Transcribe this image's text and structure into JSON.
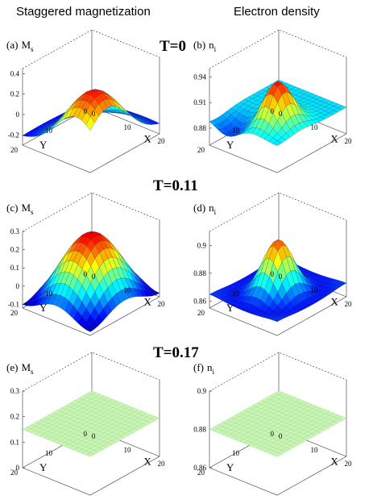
{
  "column_titles": {
    "left": "Staggered magnetization",
    "right": "Electron density"
  },
  "temperatures": [
    "T=0",
    "T=0.11",
    "T=0.17"
  ],
  "chart_data": [
    {
      "type": "surface",
      "panel": "(a)",
      "quantity": "M",
      "subscript": "s",
      "zticks": [
        "0.4",
        "0.2",
        "0",
        "-0.2"
      ],
      "zlim": [
        -0.3,
        0.45
      ],
      "xticks": [
        "0",
        "10",
        "20"
      ],
      "yticks": [
        "20",
        "10",
        "0"
      ],
      "xlabel": "X",
      "ylabel": "Y",
      "xlim": [
        0,
        20
      ],
      "ylim": [
        0,
        20
      ],
      "peak_value": 0.35,
      "min_value": -0.22,
      "colormap": "jet"
    },
    {
      "type": "surface",
      "panel": "(b)",
      "quantity": "n",
      "subscript": "i",
      "zticks": [
        "0.94",
        "0.91",
        "0.88"
      ],
      "zlim": [
        0.86,
        0.95
      ],
      "xticks": [
        "0",
        "10",
        "20"
      ],
      "yticks": [
        "20",
        "10",
        "0"
      ],
      "xlabel": "X",
      "ylabel": "Y",
      "xlim": [
        0,
        20
      ],
      "ylim": [
        0,
        20
      ],
      "peak_value": 0.94,
      "min_value": 0.865,
      "colormap": "jet"
    },
    {
      "type": "surface",
      "panel": "(c)",
      "quantity": "M",
      "subscript": "s",
      "zticks": [
        "0.3",
        "0.2",
        "0.1",
        "0",
        "-0.1"
      ],
      "zlim": [
        -0.12,
        0.3
      ],
      "xticks": [
        "0",
        "10",
        "20"
      ],
      "yticks": [
        "20",
        "10",
        "0"
      ],
      "xlabel": "X",
      "ylabel": "Y",
      "xlim": [
        0,
        20
      ],
      "ylim": [
        0,
        20
      ],
      "peak_value": 0.26,
      "min_value": -0.1,
      "colormap": "jet"
    },
    {
      "type": "surface",
      "panel": "(d)",
      "quantity": "n",
      "subscript": "i",
      "zticks": [
        "0.9",
        "0.88",
        "0.86"
      ],
      "zlim": [
        0.855,
        0.91
      ],
      "xticks": [
        "0",
        "10",
        "20"
      ],
      "yticks": [
        "20",
        "10",
        "0"
      ],
      "xlabel": "X",
      "ylabel": "Y",
      "xlim": [
        0,
        20
      ],
      "ylim": [
        0,
        20
      ],
      "peak_value": 0.9,
      "min_value": 0.863,
      "colormap": "jet"
    },
    {
      "type": "surface",
      "panel": "(e)",
      "quantity": "M",
      "subscript": "s",
      "zticks": [
        "0.3",
        "0.2",
        "0.1",
        "0"
      ],
      "zlim": [
        0,
        0.3
      ],
      "xticks": [
        "0",
        "10",
        "20"
      ],
      "yticks": [
        "20",
        "10",
        "0"
      ],
      "xlabel": "X",
      "ylabel": "Y",
      "xlim": [
        0,
        20
      ],
      "ylim": [
        0,
        20
      ],
      "constant_value": 0.15,
      "surface_color": "#c8f5b4"
    },
    {
      "type": "surface",
      "panel": "(f)",
      "quantity": "n",
      "subscript": "i",
      "zticks": [
        "0.9",
        "0.88",
        "0.86"
      ],
      "zlim": [
        0.86,
        0.9
      ],
      "xticks": [
        "0",
        "10",
        "20"
      ],
      "yticks": [
        "20",
        "10",
        "0"
      ],
      "xlabel": "X",
      "ylabel": "Y",
      "xlim": [
        0,
        20
      ],
      "ylim": [
        0,
        20
      ],
      "constant_value": 0.88,
      "surface_color": "#c8f5b4"
    }
  ]
}
